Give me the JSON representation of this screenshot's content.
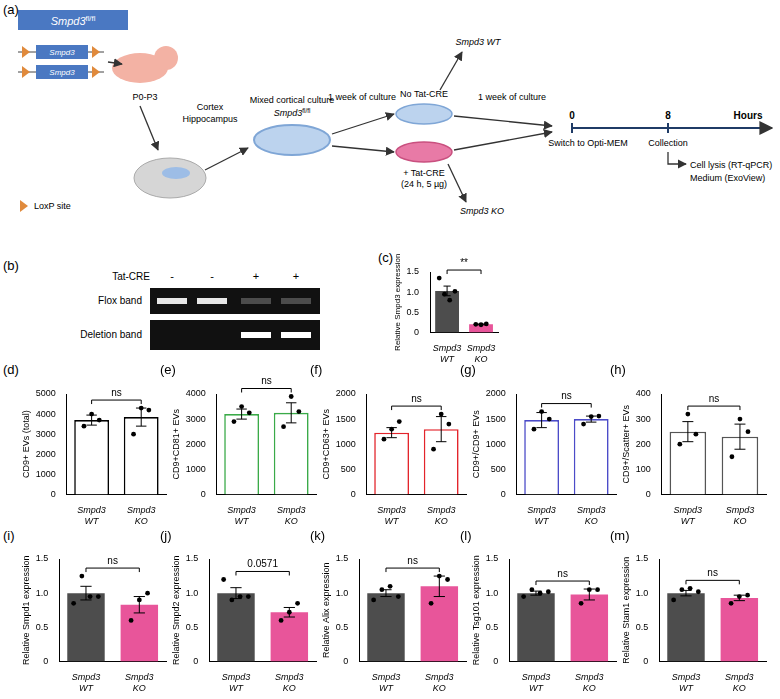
{
  "diagram": {
    "panel": "(a)",
    "genotype": {
      "gene": "Smpd3",
      "sup": "fl/fl"
    },
    "gene_box": "Smpd3",
    "loxp_legend": "LoxP site",
    "age": "P0-P3",
    "regions": [
      "Cortex",
      "Hippocampus"
    ],
    "culture": {
      "text": "Mixed cortical culture",
      "gene": "Smpd3",
      "sup": "fl/fl"
    },
    "step1": "1 week of culture",
    "branches": [
      {
        "condition": "No Tat-CRE",
        "result": "Smpd3 WT"
      },
      {
        "condition": "+ Tat-CRE",
        "detail": "(24 h, 5 µg)",
        "result": "Smpd3 KO"
      }
    ],
    "step2": "1 week of culture",
    "timeline": {
      "marks": [
        {
          "hour": 0,
          "label": "Switch to Opti-MEM"
        },
        {
          "hour": 8,
          "label": "Collection"
        }
      ],
      "unit": "Hours",
      "outputs": [
        "Cell lysis (RT-qPCR)",
        "Medium (ExoView)"
      ]
    }
  },
  "gel": {
    "panel": "(b)",
    "label": "Tat-CRE",
    "lanes": [
      "-",
      "-",
      "+",
      "+"
    ],
    "rows": [
      {
        "name": "Flox band",
        "intensity": [
          0.9,
          0.9,
          0.25,
          0.25
        ]
      },
      {
        "name": "Deletion band",
        "intensity": [
          0,
          0,
          1,
          1
        ]
      }
    ]
  },
  "chart_data": [
    {
      "panel": "(c)",
      "type": "bar",
      "y_label": "Relative Smpd3 expression",
      "categories": [
        "Smpd3 WT",
        "Smpd3 KO"
      ],
      "values": [
        1.03,
        0.2
      ],
      "errors": [
        0.12,
        0.01
      ],
      "points": [
        [
          1.35,
          0.95,
          0.8,
          1.02
        ],
        [
          0.2,
          0.19,
          0.21
        ]
      ],
      "colors": [
        "#4d4d4d",
        "#e8559a"
      ],
      "annotation": "**",
      "ylim": [
        0,
        1.5
      ],
      "yticks": [
        0,
        0.5,
        {
          "value": 1,
          "label": "1.0"
        },
        1.5
      ],
      "grid": false
    },
    {
      "panel": "(d)",
      "type": "bar",
      "y_label": "CD9+ EVs (total)",
      "categories": [
        "Smpd3 WT",
        "Smpd3 KO"
      ],
      "values": [
        3700,
        3850
      ],
      "errors": [
        250,
        450
      ],
      "points": [
        [
          3400,
          4000,
          3700
        ],
        [
          3000,
          4300,
          4200
        ]
      ],
      "colors": [
        "#000000",
        "#000000"
      ],
      "annotation": "ns",
      "ylim": [
        0,
        5000
      ],
      "yticks": [
        0,
        1000,
        2000,
        3000,
        4000,
        5000
      ],
      "grid": false
    },
    {
      "panel": "(e)",
      "type": "bar",
      "y_label": "CD9+CD81+ EVs",
      "categories": [
        "Smpd3 WT",
        "Smpd3 KO"
      ],
      "values": [
        3200,
        3250
      ],
      "errors": [
        200,
        400
      ],
      "points": [
        [
          2900,
          3500,
          3250
        ],
        [
          2700,
          3900,
          3300
        ]
      ],
      "colors": [
        "#3aaa48",
        "#3aaa48"
      ],
      "annotation": "ns",
      "ylim": [
        0,
        4000
      ],
      "yticks": [
        0,
        1000,
        2000,
        3000,
        4000
      ],
      "grid": false
    },
    {
      "panel": "(f)",
      "type": "bar",
      "y_label": "CD9+CD63+ EVs",
      "categories": [
        "Smpd3 WT",
        "Smpd3 KO"
      ],
      "values": [
        1230,
        1300
      ],
      "errors": [
        100,
        250
      ],
      "points": [
        [
          1100,
          1300,
          1450
        ],
        [
          900,
          1600,
          1400
        ]
      ],
      "colors": [
        "#e3242b",
        "#e3242b"
      ],
      "annotation": "ns",
      "ylim": [
        0,
        2000
      ],
      "yticks": [
        0,
        500,
        1000,
        1500,
        2000
      ],
      "grid": false
    },
    {
      "panel": "(g)",
      "type": "bar",
      "y_label": "CD9+/CD9+ EVs",
      "categories": [
        "Smpd3 WT",
        "Smpd3 KO"
      ],
      "values": [
        1480,
        1500
      ],
      "errors": [
        150,
        60
      ],
      "points": [
        [
          1300,
          1650,
          1500
        ],
        [
          1400,
          1550,
          1560
        ]
      ],
      "colors": [
        "#4b4bc8",
        "#4b4bc8"
      ],
      "annotation": "ns",
      "ylim": [
        0,
        2000
      ],
      "yticks": [
        0,
        500,
        1000,
        1500,
        2000
      ],
      "grid": false
    },
    {
      "panel": "(h)",
      "type": "bar",
      "y_label": "CD9+/Scatter+ EVs",
      "categories": [
        "Smpd3 WT",
        "Smpd3 KO"
      ],
      "values": [
        250,
        230
      ],
      "errors": [
        40,
        50
      ],
      "points": [
        [
          200,
          320,
          240
        ],
        [
          150,
          300,
          250
        ]
      ],
      "colors": [
        "#555555",
        "#555555"
      ],
      "annotation": "ns",
      "ylim": [
        0,
        400
      ],
      "yticks": [
        0,
        100,
        200,
        300,
        400
      ],
      "grid": false
    },
    {
      "panel": "(i)",
      "type": "bar",
      "y_label": "Relative Smpd1 expression",
      "categories": [
        "Smpd3 WT",
        "Smpd3 KO"
      ],
      "values": [
        1.0,
        0.83
      ],
      "errors": [
        0.1,
        0.12
      ],
      "points": [
        [
          0.85,
          1.25,
          0.95,
          0.95
        ],
        [
          0.6,
          0.9,
          1.0
        ]
      ],
      "colors": [
        "#4d4d4d",
        "#e8559a"
      ],
      "annotation": "ns",
      "ylim": [
        0,
        1.5
      ],
      "yticks": [
        0,
        0.5,
        {
          "value": 1,
          "label": "1.0"
        },
        1.5
      ],
      "grid": false
    },
    {
      "panel": "(j)",
      "type": "bar",
      "y_label": "Relative Smpd2 expression",
      "categories": [
        "Smpd3 WT",
        "Smpd3 KO"
      ],
      "values": [
        1.0,
        0.72
      ],
      "errors": [
        0.08,
        0.07
      ],
      "points": [
        [
          1.2,
          0.9,
          0.95,
          0.95
        ],
        [
          0.6,
          0.72,
          0.85
        ]
      ],
      "colors": [
        "#4d4d4d",
        "#e8559a"
      ],
      "annotation": "0.0571",
      "ylim": [
        0,
        1.5
      ],
      "yticks": [
        0,
        0.5,
        {
          "value": 1,
          "label": "1.0"
        },
        1.5
      ],
      "grid": false
    },
    {
      "panel": "(k)",
      "type": "bar",
      "y_label": "Relative Alix expression",
      "categories": [
        "Smpd3 WT",
        "Smpd3 KO"
      ],
      "values": [
        1.0,
        1.1
      ],
      "errors": [
        0.05,
        0.15
      ],
      "points": [
        [
          0.9,
          1.05,
          1.1,
          0.95
        ],
        [
          0.85,
          1.25,
          1.2
        ]
      ],
      "colors": [
        "#4d4d4d",
        "#e8559a"
      ],
      "annotation": "ns",
      "ylim": [
        0,
        1.5
      ],
      "yticks": [
        0,
        0.5,
        {
          "value": 1,
          "label": "1.0"
        },
        1.5
      ],
      "grid": false
    },
    {
      "panel": "(l)",
      "type": "bar",
      "y_label": "Relative Tsg101 expression",
      "categories": [
        "Smpd3 WT",
        "Smpd3 KO"
      ],
      "values": [
        1.0,
        0.98
      ],
      "errors": [
        0.03,
        0.08
      ],
      "points": [
        [
          0.95,
          1.05,
          1.0,
          1.02
        ],
        [
          0.85,
          1.05,
          1.05
        ]
      ],
      "colors": [
        "#4d4d4d",
        "#e8559a"
      ],
      "annotation": "ns",
      "ylim": [
        0,
        1.5
      ],
      "yticks": [
        0,
        0.5,
        {
          "value": 1,
          "label": "1.0"
        },
        1.5
      ],
      "grid": false
    },
    {
      "panel": "(m)",
      "type": "bar",
      "y_label": "Relative Stam1 expression",
      "categories": [
        "Smpd3 WT",
        "Smpd3 KO"
      ],
      "values": [
        1.0,
        0.93
      ],
      "errors": [
        0.04,
        0.04
      ],
      "points": [
        [
          0.9,
          1.05,
          1.07,
          1.02
        ],
        [
          0.85,
          0.95,
          0.97
        ]
      ],
      "colors": [
        "#4d4d4d",
        "#e8559a"
      ],
      "annotation": "ns",
      "ylim": [
        0,
        1.5
      ],
      "yticks": [
        0,
        0.5,
        {
          "value": 1,
          "label": "1.0"
        },
        1.5
      ],
      "grid": false
    }
  ]
}
